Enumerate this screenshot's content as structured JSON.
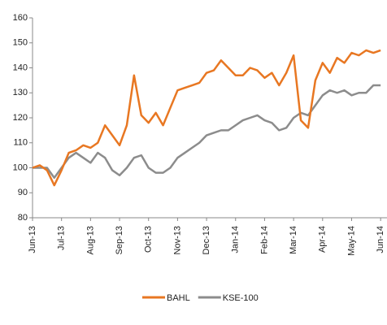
{
  "chart_data": {
    "type": "line",
    "categories": [
      "Jun-13",
      null,
      null,
      null,
      "Jul-13",
      null,
      null,
      null,
      "Aug-13",
      null,
      null,
      null,
      "Sep-13",
      null,
      null,
      null,
      "Oct-13",
      null,
      null,
      null,
      "Nov-13",
      null,
      null,
      null,
      "Dec-13",
      null,
      null,
      null,
      "Jan-14",
      null,
      null,
      null,
      "Feb-14",
      null,
      null,
      null,
      "Mar-14",
      null,
      null,
      null,
      "Apr-14",
      null,
      null,
      null,
      "May-14",
      null,
      null,
      null,
      "Jun-14"
    ],
    "series": [
      {
        "name": "BAHL",
        "color": "#e87722",
        "values": [
          100,
          101,
          99,
          93,
          99,
          106,
          107,
          109,
          108,
          110,
          117,
          113,
          109,
          117,
          137,
          121,
          118,
          122,
          117,
          124,
          131,
          132,
          133,
          134,
          138,
          139,
          143,
          140,
          137,
          137,
          140,
          139,
          136,
          138,
          133,
          138,
          145,
          119,
          116,
          135,
          142,
          138,
          144,
          142,
          146,
          145,
          147,
          146,
          147
        ]
      },
      {
        "name": "KSE-100",
        "color": "#8c8c8c",
        "values": [
          100,
          100,
          100,
          96,
          100,
          104,
          106,
          104,
          102,
          106,
          104,
          99,
          97,
          100,
          104,
          105,
          100,
          98,
          98,
          100,
          104,
          106,
          108,
          110,
          113,
          114,
          115,
          115,
          117,
          119,
          120,
          121,
          119,
          118,
          115,
          116,
          120,
          122,
          121,
          125,
          129,
          131,
          130,
          131,
          129,
          130,
          130,
          133,
          133
        ]
      }
    ],
    "ylim": [
      80,
      160
    ],
    "yticks": [
      80,
      90,
      100,
      110,
      120,
      130,
      140,
      150,
      160
    ],
    "legend": "bottom"
  }
}
